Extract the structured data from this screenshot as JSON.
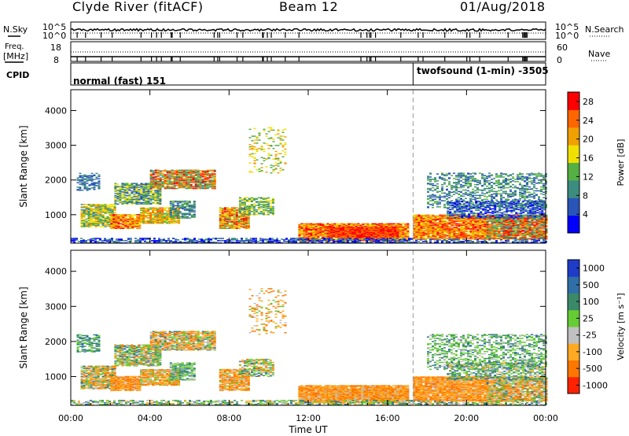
{
  "header": {
    "station": "Clyde River (fitACF)",
    "beam": "Beam 12",
    "date": "01/Aug/2018"
  },
  "strip_labels": {
    "nsky": "N.Sky",
    "nsearch": "N.Search",
    "freq": "Freq.",
    "freq_unit": "[MHz]",
    "nave": "Nave",
    "cpid": "CPID"
  },
  "strip_ticks": {
    "noise_left": [
      "10^5",
      "10^0"
    ],
    "noise_right": [
      "10^5",
      "10^0"
    ],
    "freq_left": [
      "18",
      "8"
    ],
    "nave_right": [
      "60",
      "0"
    ]
  },
  "modes": [
    {
      "name": "normal (fast) 151"
    },
    {
      "name": "twofsound (1-min) -3505"
    }
  ],
  "colors": {
    "power_scale": [
      "#0000ff",
      "#2a55b8",
      "#3c8c80",
      "#55b044",
      "#f0e000",
      "#f0a000",
      "#ff6600",
      "#ff0000"
    ],
    "velocity_scale": [
      "#1e3cc8",
      "#2f6fa6",
      "#3a8a6a",
      "#66cc33",
      "#c0c0c0",
      "#ffaa22",
      "#ff7700",
      "#ff2200"
    ]
  },
  "chart_data": [
    {
      "type": "heatmap",
      "title": "",
      "xlabel": "",
      "ylabel": "Slant Range [km]",
      "x_ticks": [
        "00:00",
        "04:00",
        "08:00",
        "12:00",
        "16:00",
        "20:00",
        "00:00"
      ],
      "xlim_hours": [
        0,
        24
      ],
      "y_ticks": [
        1000,
        2000,
        3000,
        4000
      ],
      "ylim": [
        180,
        4600
      ],
      "colorbar": {
        "label": "Power [dB]",
        "ticks": [
          4,
          8,
          12,
          16,
          20,
          24,
          28
        ],
        "range": [
          0,
          30
        ]
      }
    },
    {
      "type": "heatmap",
      "title": "",
      "xlabel": "Time UT",
      "ylabel": "Slant Range [km]",
      "x_ticks": [
        "00:00",
        "04:00",
        "08:00",
        "12:00",
        "16:00",
        "20:00",
        "00:00"
      ],
      "xlim_hours": [
        0,
        24
      ],
      "y_ticks": [
        1000,
        2000,
        3000,
        4000
      ],
      "ylim": [
        180,
        4600
      ],
      "colorbar": {
        "label": "Velocity [m s⁻¹]",
        "ticks": [
          "1000",
          "500",
          "100",
          "25",
          "-25",
          "-100",
          "-500",
          "-1000"
        ]
      }
    }
  ]
}
